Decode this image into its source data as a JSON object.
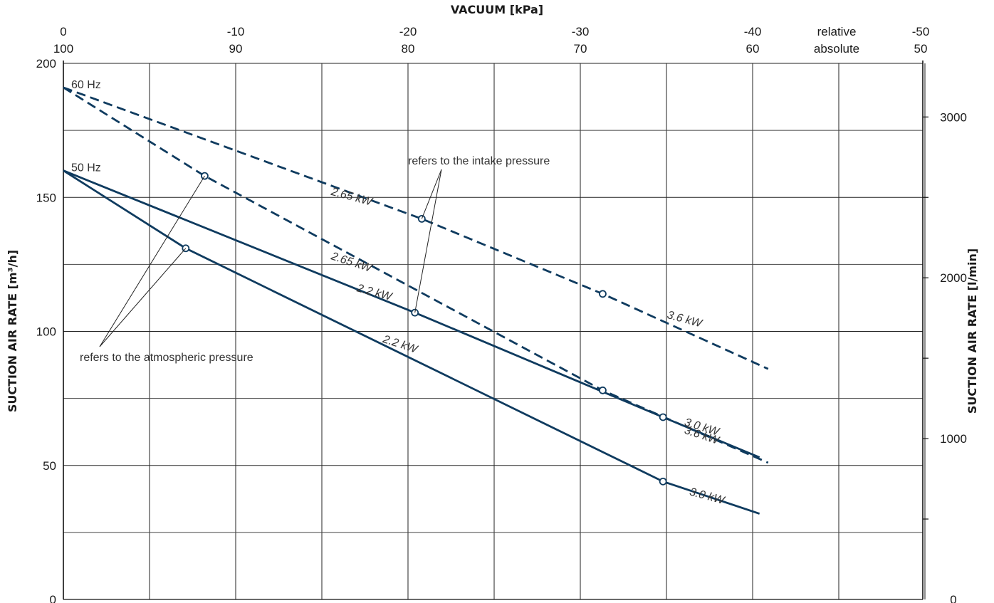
{
  "chart_data": {
    "type": "line",
    "title": "VACUUM [kPa]",
    "ylabel_left": "SUCTION AIR RATE [m³/h]",
    "ylabel_right": "SUCTION AIR RATE [l/min]",
    "xlim": [
      0,
      -50
    ],
    "ylim_left": [
      0,
      200
    ],
    "ylim_right": [
      0,
      3333.3
    ],
    "x_ticks_relative": [
      "0",
      "-10",
      "-20",
      "-30",
      "-40",
      "-50"
    ],
    "x_ticks_absolute": [
      "100",
      "90",
      "80",
      "70",
      "60",
      "50"
    ],
    "x_axis_name_relative": "relative",
    "x_axis_name_absolute": "absolute",
    "y_ticks_left": [
      "0",
      "50",
      "100",
      "150",
      "200"
    ],
    "y_ticks_right": [
      "0",
      "1000",
      "2000",
      "3000"
    ],
    "freq_labels": [
      {
        "text": "60 Hz",
        "x": 0,
        "y": 191
      },
      {
        "text": "50 Hz",
        "x": 0,
        "y": 160
      }
    ],
    "annotations": {
      "intake": "refers to the intake pressure",
      "atmospheric": "refers to the atmospheric pressure"
    },
    "series": [
      {
        "name": "2.65 kW / 3.6 kW",
        "frequency": "60 Hz",
        "reference": "intake",
        "dashed": true,
        "x": [
          0,
          -20.8,
          -31.3,
          -40.9
        ],
        "y": [
          191,
          142,
          114,
          86
        ],
        "markers": [
          {
            "x": -20.8,
            "y": 142
          },
          {
            "x": -31.3,
            "y": 114
          }
        ]
      },
      {
        "name": "2.65 kW / 3.6 kW",
        "frequency": "60 Hz",
        "reference": "atmospheric",
        "dashed": true,
        "x": [
          0,
          -8.2,
          -31.3,
          -40.9
        ],
        "y": [
          191,
          158,
          78,
          51
        ],
        "markers": [
          {
            "x": -8.2,
            "y": 158
          },
          {
            "x": -31.3,
            "y": 78
          }
        ]
      },
      {
        "name": "2.2 kW / 3.0 kW",
        "frequency": "50 Hz",
        "reference": "intake",
        "solid": true,
        "x": [
          0,
          -20.4,
          -34.8,
          -40.4
        ],
        "y": [
          160,
          107,
          68,
          53
        ],
        "markers": [
          {
            "x": -20.4,
            "y": 107
          },
          {
            "x": -34.8,
            "y": 68
          }
        ]
      },
      {
        "name": "2.2 kW / 3.0 kW",
        "frequency": "50 Hz",
        "reference": "atmospheric",
        "solid": true,
        "x": [
          0,
          -7.1,
          -34.8,
          -40.4
        ],
        "y": [
          160,
          131,
          44,
          32
        ],
        "markers": [
          {
            "x": -7.1,
            "y": 131
          },
          {
            "x": -34.8,
            "y": 44
          }
        ]
      }
    ],
    "power_labels": [
      {
        "text": "2.65 kW",
        "x": -15.5,
        "y": 151,
        "angle": 15
      },
      {
        "text": "3.6 kW",
        "x": -35.0,
        "y": 105,
        "angle": 15
      },
      {
        "text": "2.65 kW",
        "x": -15.5,
        "y": 127,
        "angle": 18
      },
      {
        "text": "3.6 kW",
        "x": -36.0,
        "y": 62,
        "angle": 18
      },
      {
        "text": "2.2 kW",
        "x": -17.0,
        "y": 115,
        "angle": 15
      },
      {
        "text": "3.0 kW",
        "x": -36.0,
        "y": 65,
        "angle": 17
      },
      {
        "text": "2.2 kW",
        "x": -18.5,
        "y": 96,
        "angle": 18
      },
      {
        "text": "3.0 kW",
        "x": -36.3,
        "y": 39,
        "angle": 15
      }
    ],
    "grid": true
  }
}
